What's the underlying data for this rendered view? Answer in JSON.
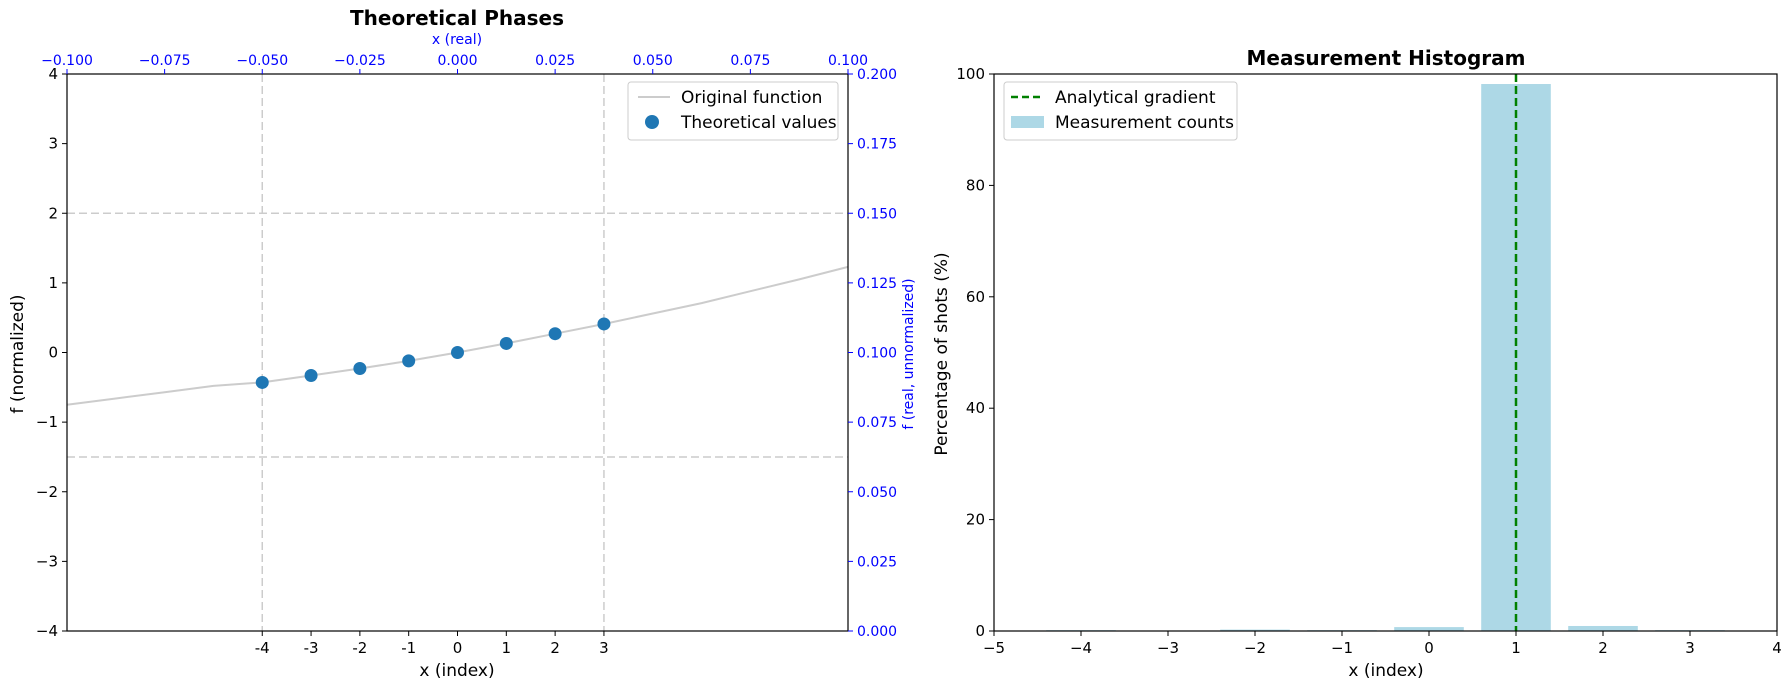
{
  "chart_data": [
    {
      "type": "scatter",
      "title": "Theoretical Phases",
      "xlabel": "x (index)",
      "ylabel": "f (normalized)",
      "xlim": [
        -8,
        8
      ],
      "ylim": [
        -4,
        4
      ],
      "x_ticks": [
        -4,
        -3,
        -2,
        -1,
        0,
        1,
        2,
        3
      ],
      "y_ticks": [
        -4,
        -3,
        -2,
        -1,
        0,
        1,
        2,
        3,
        4
      ],
      "top_axis": {
        "label": "x (real)",
        "lim": [
          -0.1,
          0.1
        ],
        "ticks": [
          "−0.100",
          "−0.075",
          "−0.050",
          "−0.025",
          "0.000",
          "0.025",
          "0.050",
          "0.075",
          "0.100"
        ],
        "color": "#0000ff"
      },
      "right_axis": {
        "label": "f (real, unnormalized)",
        "lim": [
          0.0,
          0.2
        ],
        "ticks": [
          "0.000",
          "0.025",
          "0.050",
          "0.075",
          "0.100",
          "0.125",
          "0.150",
          "0.175",
          "0.200"
        ],
        "color": "#0000ff"
      },
      "hlines": [
        2,
        -1.5
      ],
      "vlines": [
        -4,
        3
      ],
      "series": [
        {
          "name": "Original function",
          "kind": "line",
          "color": "#cccccc",
          "x": [
            -8,
            -7,
            -6,
            -5,
            -4,
            -3,
            -2,
            -1,
            0,
            1,
            2,
            3,
            4,
            5,
            6,
            7,
            8
          ],
          "y": [
            -0.75,
            -0.66,
            -0.57,
            -0.48,
            -0.43,
            -0.33,
            -0.23,
            -0.12,
            0.0,
            0.13,
            0.27,
            0.41,
            0.56,
            0.71,
            0.88,
            1.05,
            1.23
          ]
        },
        {
          "name": "Theoretical values",
          "kind": "points",
          "color": "#1f77b4",
          "x": [
            -4,
            -3,
            -2,
            -1,
            0,
            1,
            2,
            3
          ],
          "y": [
            -0.43,
            -0.33,
            -0.23,
            -0.12,
            0.0,
            0.13,
            0.27,
            0.41
          ]
        }
      ],
      "legend": "top-right",
      "grid": false
    },
    {
      "type": "bar",
      "title": "Measurement Histogram",
      "xlabel": "x (index)",
      "ylabel": "Percentage of shots (%)",
      "xlim": [
        -5,
        4
      ],
      "ylim": [
        0,
        100
      ],
      "x_ticks": [
        -5,
        -4,
        -3,
        -2,
        -1,
        0,
        1,
        2,
        3,
        4
      ],
      "y_ticks": [
        0,
        20,
        40,
        60,
        80,
        100
      ],
      "categories": [
        -4,
        -3,
        -2,
        -1,
        0,
        1,
        2,
        3
      ],
      "series": [
        {
          "name": "Measurement counts",
          "color": "#add8e6",
          "values": [
            0.15,
            0.05,
            0.25,
            0.15,
            0.7,
            98.2,
            0.9,
            0.15
          ]
        }
      ],
      "vline": {
        "name": "Analytical gradient",
        "x": 1,
        "color": "#008000"
      },
      "legend": "top-left",
      "grid": false
    }
  ]
}
